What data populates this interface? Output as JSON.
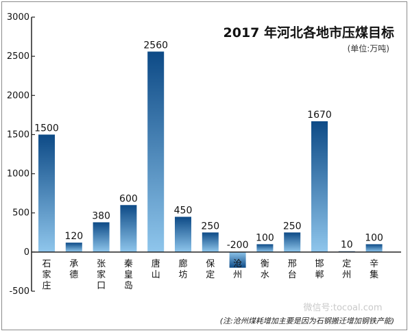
{
  "chart_data": {
    "type": "bar",
    "title": "2017 年河北各地市压煤目标",
    "unit": "(单位:万吨)",
    "note": "(注:沧州煤耗增加主要是因为石钢搬迁增加钢铁产能)",
    "ylim": [
      -500,
      3000
    ],
    "yticks": [
      -500,
      0,
      500,
      1000,
      1500,
      2000,
      2500,
      3000
    ],
    "ytick_labels": [
      "-500",
      "0",
      "500",
      "1000",
      "1500",
      "2000",
      "2500",
      "3000"
    ],
    "categories": [
      "石家庄",
      "承德",
      "张家口",
      "秦皇岛",
      "唐山",
      "廊坊",
      "保定",
      "沧州",
      "衡水",
      "邢台",
      "邯郸",
      "定州",
      "辛集"
    ],
    "values": [
      1500,
      120,
      380,
      600,
      2560,
      450,
      250,
      -200,
      100,
      250,
      1670,
      10,
      100
    ],
    "value_labels": [
      "1500",
      "120",
      "380",
      "600",
      "2560",
      "450",
      "250",
      "-200",
      "100",
      "250",
      "1670",
      "10",
      "100"
    ],
    "colors": {
      "bar_dark": "#0d4a86",
      "bar_light": "#8fc6ec",
      "axis": "#222222"
    }
  },
  "watermark": "微信号:tocoal.com"
}
